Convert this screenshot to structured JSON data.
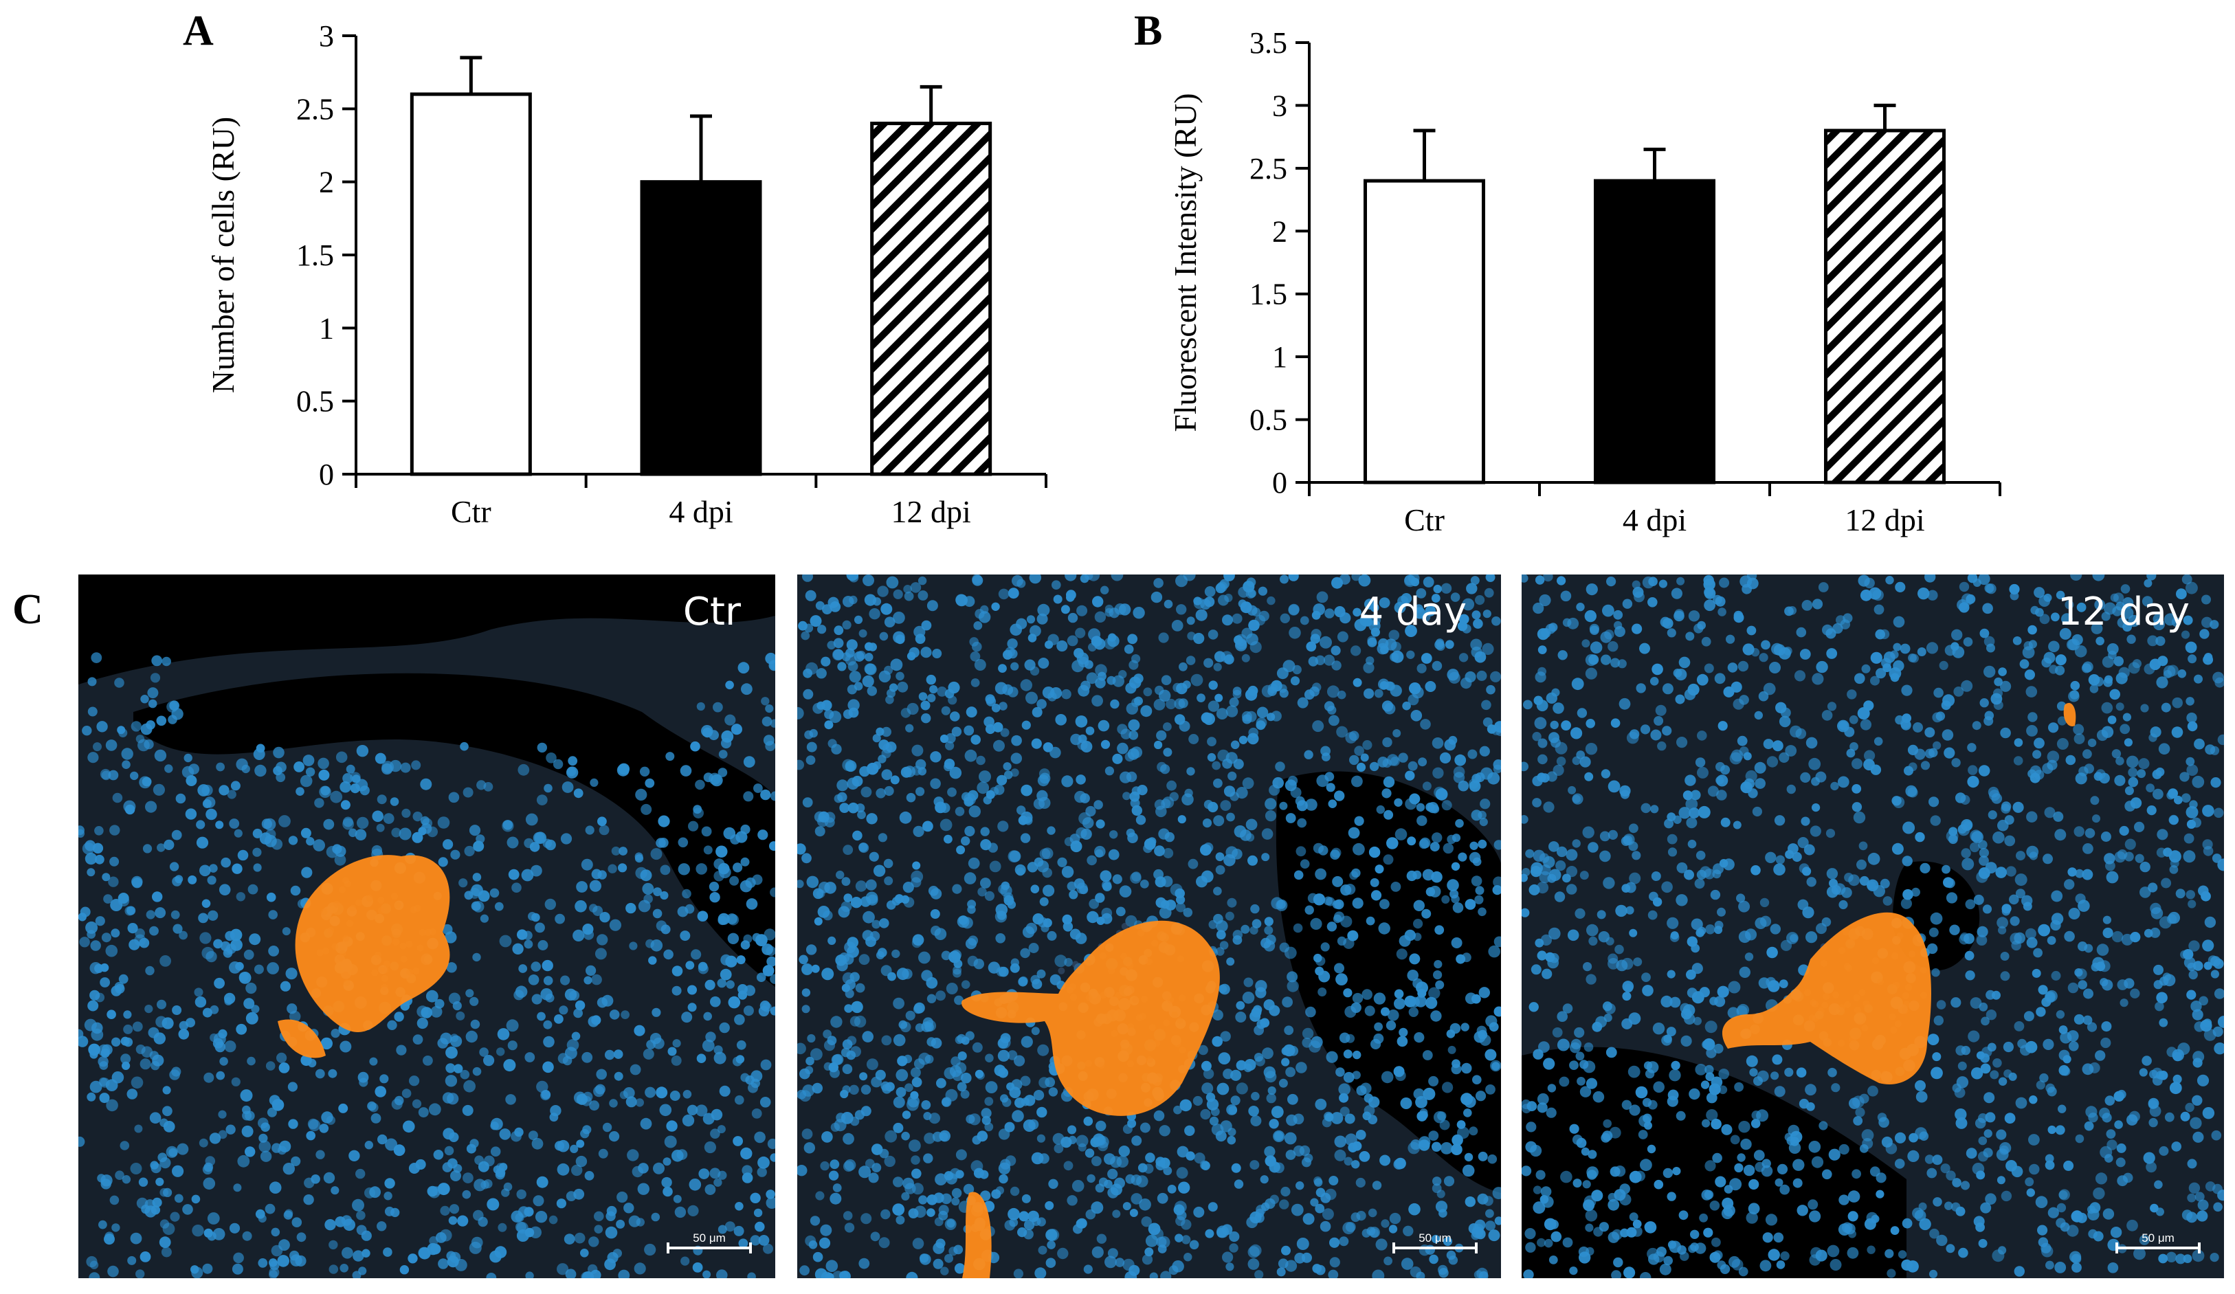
{
  "panels": {
    "a_letter": "A",
    "b_letter": "B",
    "c_letter": "C"
  },
  "chart_data": [
    {
      "type": "bar",
      "panel": "A",
      "ylabel": "Number of cells (RU)",
      "xlabel": "",
      "categories": [
        "Ctr",
        "4 dpi",
        "12 dpi"
      ],
      "values": [
        2.6,
        2.0,
        2.4
      ],
      "errors": [
        0.25,
        0.45,
        0.25
      ],
      "ylim": [
        0,
        3
      ],
      "yticks": [
        0,
        0.5,
        1,
        1.5,
        2,
        2.5,
        3
      ],
      "ytick_labels": [
        "0",
        "0.5",
        "1",
        "1.5",
        "2",
        "2.5",
        "3"
      ],
      "fills": [
        "white",
        "black",
        "hatch"
      ],
      "grid": false
    },
    {
      "type": "bar",
      "panel": "B",
      "ylabel": "Fluorescent Intensity (RU)",
      "xlabel": "",
      "categories": [
        "Ctr",
        "4 dpi",
        "12 dpi"
      ],
      "values": [
        2.4,
        2.4,
        2.8
      ],
      "errors": [
        0.4,
        0.25,
        0.2
      ],
      "ylim": [
        0,
        3.5
      ],
      "yticks": [
        0,
        0.5,
        1,
        1.5,
        2,
        2.5,
        3,
        3.5
      ],
      "ytick_labels": [
        "0",
        "0.5",
        "1",
        "1.5",
        "2",
        "2.5",
        "3",
        "3.5"
      ],
      "fills": [
        "white",
        "black",
        "hatch"
      ],
      "grid": false
    }
  ],
  "micrographs": [
    {
      "label": "Ctr",
      "scale": "50 μm"
    },
    {
      "label": "4 day",
      "scale": "50 μm"
    },
    {
      "label": "12 day",
      "scale": "50 μm"
    }
  ],
  "colors": {
    "nuclei": "#2e8fd0",
    "islet": "#ff8c1a",
    "tissue_bg": "#16202b"
  }
}
